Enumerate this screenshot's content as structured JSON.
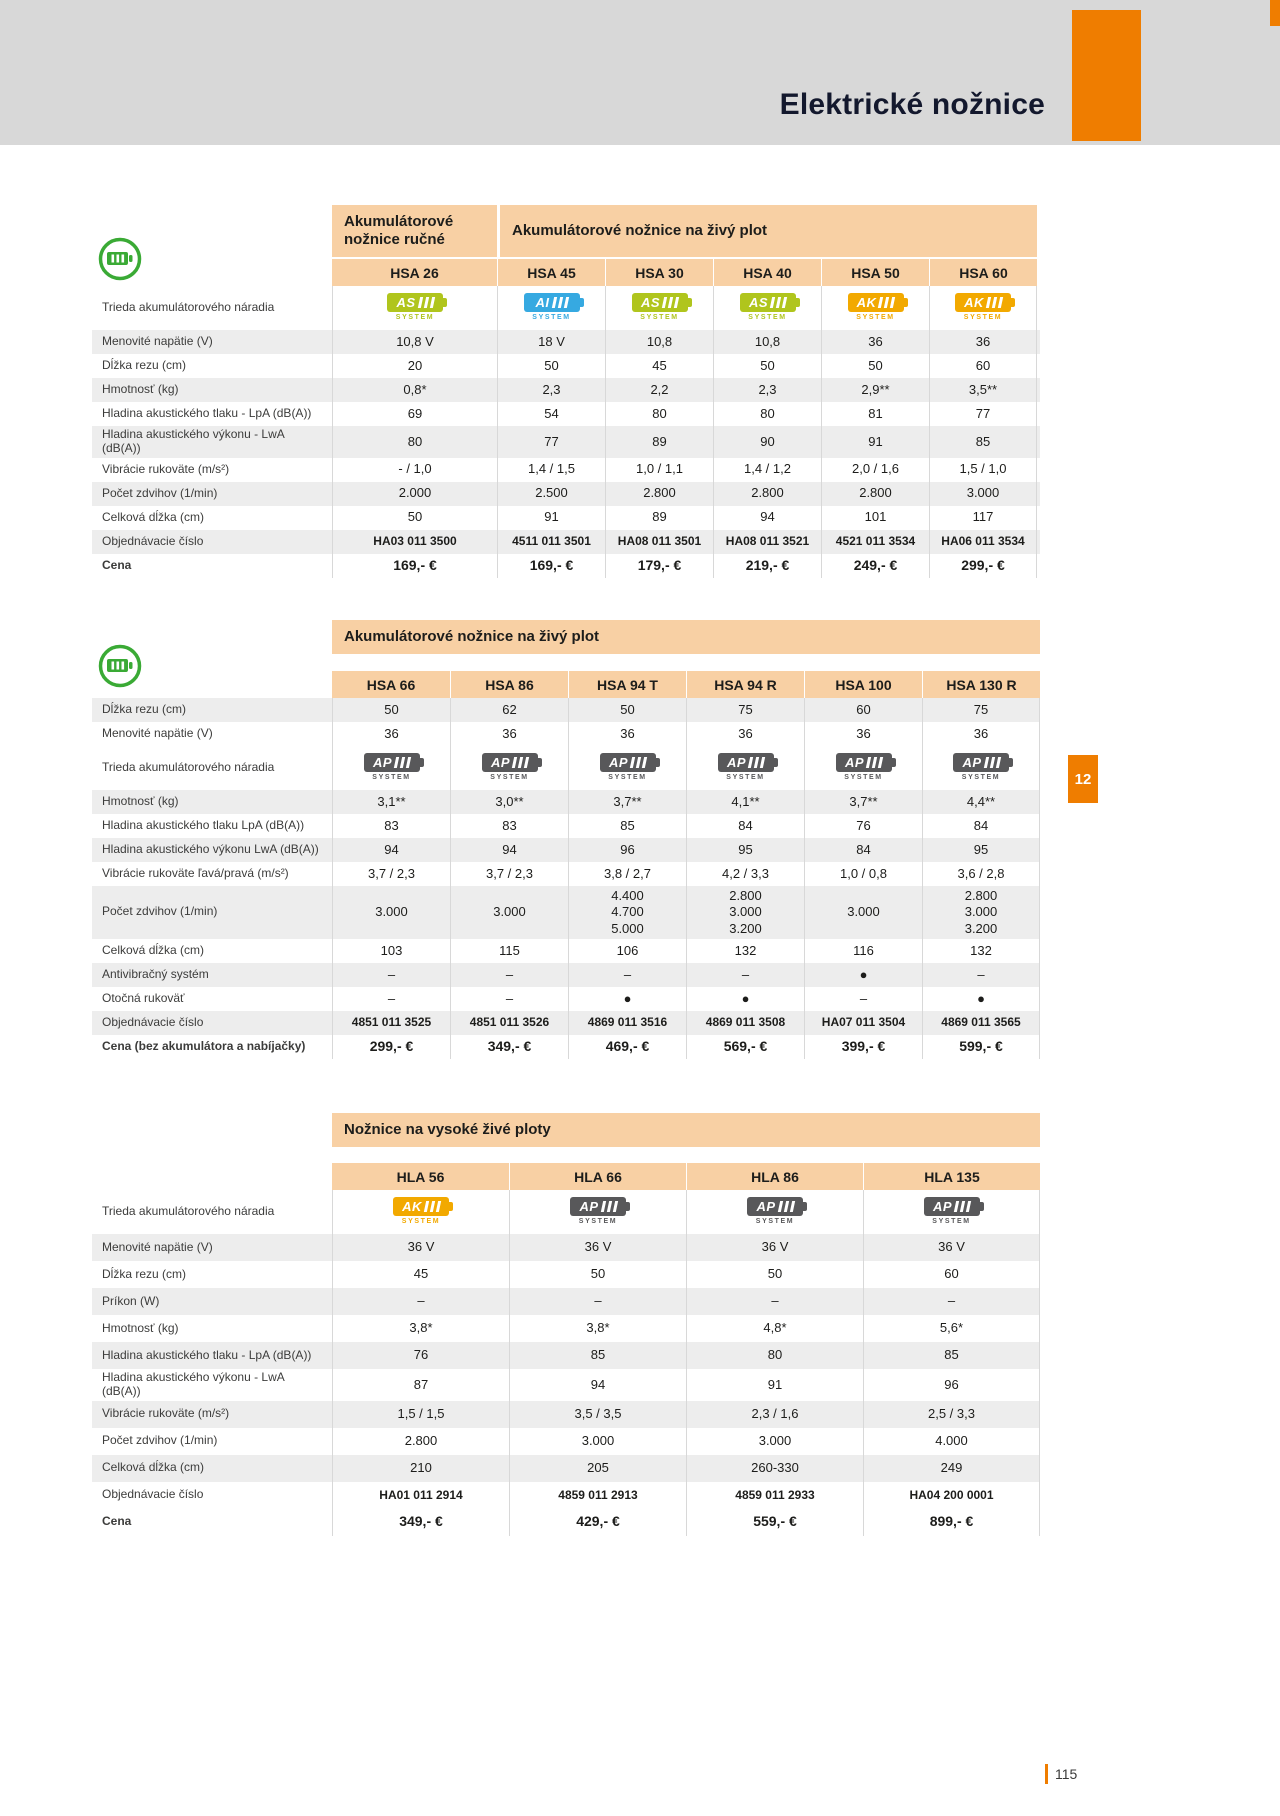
{
  "page": {
    "title": "Elektrické nožnice",
    "page_number": "115",
    "side_tab_label": "12"
  },
  "colors": {
    "accent_orange": "#ef7d00",
    "header_peach": "#f8d0a4",
    "row_shade": "#ededed",
    "top_band_gray": "#d8d8d8",
    "battery_icon_green": "#3aaa35",
    "as_system_green": "#b0c51d",
    "ai_system_blue": "#36a9e1",
    "ak_system_yellow": "#f2a900",
    "ap_system_gray": "#58585a"
  },
  "badge_types": {
    "AS": {
      "label": "AS",
      "sub": "SYSTEM",
      "color": "#b0c51d"
    },
    "AI": {
      "label": "AI",
      "sub": "SYSTEM",
      "color": "#36a9e1"
    },
    "AK": {
      "label": "AK",
      "sub": "SYSTEM",
      "color": "#f2a900"
    },
    "AP": {
      "label": "AP",
      "sub": "SYSTEM",
      "color": "#58585a"
    }
  },
  "tables": [
    {
      "side_icon": "battery-circle-icon",
      "group_headers": [
        {
          "label": "Akumulátorové nožnice ručné",
          "span": 1
        },
        {
          "label": "Akumulátorové nožnice na živý plot",
          "span": 5
        }
      ],
      "models": [
        "HSA 26",
        "HSA 45",
        "HSA 30",
        "HSA 40",
        "HSA 50",
        "HSA 60"
      ],
      "rows": [
        {
          "label": "Trieda akumulátorového náradia",
          "kind": "badges",
          "values": [
            "AS",
            "AI",
            "AS",
            "AS",
            "AK",
            "AK"
          ]
        },
        {
          "label": "Menovité napätie (V)",
          "values": [
            "10,8 V",
            "18 V",
            "10,8",
            "10,8",
            "36",
            "36"
          ]
        },
        {
          "label": "Dĺžka rezu (cm)",
          "values": [
            "20",
            "50",
            "45",
            "50",
            "50",
            "60"
          ]
        },
        {
          "label": "Hmotnosť (kg)",
          "values": [
            "0,8*",
            "2,3",
            "2,2",
            "2,3",
            "2,9**",
            "3,5**"
          ]
        },
        {
          "label": "Hladina akustického tlaku - LpA (dB(A))",
          "values": [
            "69",
            "54",
            "80",
            "80",
            "81",
            "77"
          ]
        },
        {
          "label": "Hladina akustického výkonu - LwA (dB(A))",
          "values": [
            "80",
            "77",
            "89",
            "90",
            "91",
            "85"
          ]
        },
        {
          "label": "Vibrácie rukoväte (m/s²)",
          "values": [
            "- / 1,0",
            "1,4 / 1,5",
            "1,0 / 1,1",
            "1,4 / 1,2",
            "2,0 / 1,6",
            "1,5 / 1,0"
          ]
        },
        {
          "label": "Počet zdvihov (1/min)",
          "values": [
            "2.000",
            "2.500",
            "2.800",
            "2.800",
            "2.800",
            "3.000"
          ]
        },
        {
          "label": "Celková dĺžka (cm)",
          "values": [
            "50",
            "91",
            "89",
            "94",
            "101",
            "117"
          ]
        },
        {
          "label": "Objednávacie číslo",
          "kind": "order",
          "values": [
            "HA03 011 3500",
            "4511 011 3501",
            "HA08 011 3501",
            "HA08 011 3521",
            "4521 011 3534",
            "HA06 011 3534"
          ]
        },
        {
          "label": "Cena",
          "kind": "price",
          "values": [
            "169,- €",
            "169,- €",
            "179,- €",
            "219,- €",
            "249,- €",
            "299,- €"
          ]
        }
      ]
    },
    {
      "side_icon": "battery-circle-icon",
      "group_headers": [
        {
          "label": "Akumulátorové nožnice na živý plot",
          "span": 6
        }
      ],
      "models": [
        "HSA 66",
        "HSA 86",
        "HSA 94 T",
        "HSA 94 R",
        "HSA 100",
        "HSA 130 R"
      ],
      "rows": [
        {
          "label": "Dĺžka rezu (cm)",
          "values": [
            "50",
            "62",
            "50",
            "75",
            "60",
            "75"
          ]
        },
        {
          "label": "Menovité napätie (V)",
          "values": [
            "36",
            "36",
            "36",
            "36",
            "36",
            "36"
          ]
        },
        {
          "label": "Trieda akumulátorového náradia",
          "kind": "badges",
          "values": [
            "AP",
            "AP",
            "AP",
            "AP",
            "AP",
            "AP"
          ]
        },
        {
          "label": "Hmotnosť (kg)",
          "values": [
            "3,1**",
            "3,0**",
            "3,7**",
            "4,1**",
            "3,7**",
            "4,4**"
          ]
        },
        {
          "label": "Hladina akustického tlaku LpA (dB(A))",
          "values": [
            "83",
            "83",
            "85",
            "84",
            "76",
            "84"
          ]
        },
        {
          "label": "Hladina akustického výkonu LwA (dB(A))",
          "values": [
            "94",
            "94",
            "96",
            "95",
            "84",
            "95"
          ]
        },
        {
          "label": "Vibrácie rukoväte ľavá/pravá (m/s²)",
          "values": [
            "3,7 / 2,3",
            "3,7 / 2,3",
            "3,8 / 2,7",
            "4,2 / 3,3",
            "1,0 / 0,8",
            "3,6 / 2,8"
          ]
        },
        {
          "label": "Počet zdvihov (1/min)",
          "values": [
            "3.000",
            "3.000",
            "4.400\n4.700\n5.000",
            "2.800\n3.000\n3.200",
            "3.000",
            "2.800\n3.000\n3.200"
          ]
        },
        {
          "label": "Celková dĺžka (cm)",
          "values": [
            "103",
            "115",
            "106",
            "132",
            "116",
            "132"
          ]
        },
        {
          "label": "Antivibračný systém",
          "values": [
            "–",
            "–",
            "–",
            "–",
            "●",
            "–"
          ]
        },
        {
          "label": "Otočná rukoväť",
          "values": [
            "–",
            "–",
            "●",
            "●",
            "–",
            "●"
          ]
        },
        {
          "label": "Objednávacie číslo",
          "kind": "order",
          "values": [
            "4851 011 3525",
            "4851 011 3526",
            "4869 011 3516",
            "4869 011 3508",
            "HA07 011 3504",
            "4869 011 3565"
          ]
        },
        {
          "label": "Cena (bez akumulátora a nabíjačky)",
          "kind": "price",
          "values": [
            "299,- €",
            "349,- €",
            "469,- €",
            "569,- €",
            "399,- €",
            "599,- €"
          ]
        }
      ]
    },
    {
      "group_headers": [
        {
          "label": "Nožnice na vysoké živé ploty",
          "span": 4
        }
      ],
      "models": [
        "HLA 56",
        "HLA 66",
        "HLA 86",
        "HLA 135"
      ],
      "rows": [
        {
          "label": "Trieda akumulátorového náradia",
          "kind": "badges",
          "values": [
            "AK",
            "AP",
            "AP",
            "AP"
          ]
        },
        {
          "label": "Menovité napätie (V)",
          "values": [
            "36 V",
            "36 V",
            "36 V",
            "36 V"
          ]
        },
        {
          "label": "Dĺžka rezu (cm)",
          "values": [
            "45",
            "50",
            "50",
            "60"
          ]
        },
        {
          "label": "Príkon (W)",
          "values": [
            "–",
            "–",
            "–",
            "–"
          ]
        },
        {
          "label": "Hmotnosť (kg)",
          "values": [
            "3,8*",
            "3,8*",
            "4,8*",
            "5,6*"
          ]
        },
        {
          "label": "Hladina akustického tlaku - LpA (dB(A))",
          "values": [
            "76",
            "85",
            "80",
            "85"
          ]
        },
        {
          "label": "Hladina akustického výkonu - LwA (dB(A))",
          "values": [
            "87",
            "94",
            "91",
            "96"
          ]
        },
        {
          "label": "Vibrácie rukoväte (m/s²)",
          "values": [
            "1,5 / 1,5",
            "3,5 / 3,5",
            "2,3 / 1,6",
            "2,5 / 3,3"
          ]
        },
        {
          "label": "Počet zdvihov (1/min)",
          "values": [
            "2.800",
            "3.000",
            "3.000",
            "4.000"
          ]
        },
        {
          "label": "Celková dĺžka (cm)",
          "values": [
            "210",
            "205",
            "260-330",
            "249"
          ]
        },
        {
          "label": "Objednávacie číslo",
          "kind": "order",
          "values": [
            "HA01 011 2914",
            "4859 011 2913",
            "4859 011 2933",
            "HA04 200 0001"
          ]
        },
        {
          "label": "Cena",
          "kind": "price",
          "values": [
            "349,- €",
            "429,- €",
            "559,- €",
            "899,- €"
          ]
        }
      ]
    }
  ]
}
